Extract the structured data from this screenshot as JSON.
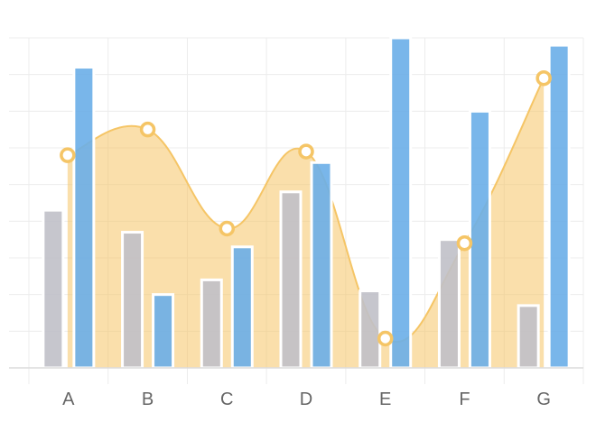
{
  "chart_data": {
    "type": "bar",
    "categories": [
      "A",
      "B",
      "C",
      "D",
      "E",
      "F",
      "G"
    ],
    "ylim": [
      0,
      9
    ],
    "grid": true,
    "series": [
      {
        "type": "bar",
        "values": [
          4.3,
          3.7,
          2.4,
          4.8,
          2.1,
          3.5,
          1.7
        ],
        "color": "#c0c0c8"
      },
      {
        "type": "bar",
        "values": [
          8.2,
          2.0,
          3.3,
          5.6,
          9.0,
          7.0,
          8.8
        ],
        "color": "#6aaee8"
      },
      {
        "type": "area",
        "values": [
          5.8,
          6.5,
          3.8,
          5.9,
          0.8,
          3.4,
          7.9
        ],
        "color": "#f5c566"
      }
    ]
  }
}
